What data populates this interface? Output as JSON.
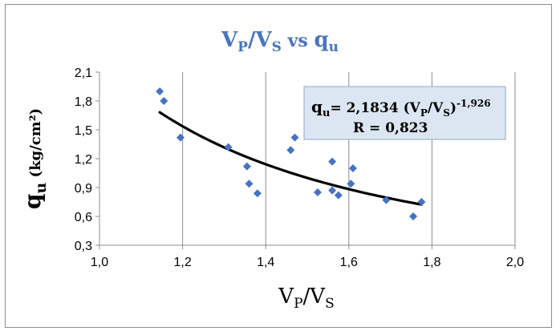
{
  "chart_data": {
    "type": "scatter",
    "title": {
      "main": "V",
      "sub1": "P",
      "mid": "/V",
      "sub2": "S",
      "vs": "vs",
      "q": "q",
      "qsub": "u"
    },
    "xlabel": {
      "main": "V",
      "sub1": "P",
      "mid": "/V",
      "sub2": "S"
    },
    "ylabel": {
      "main": "q",
      "sub": "u",
      "unit": "(kg/cm²)"
    },
    "xlim": [
      1.0,
      2.0
    ],
    "ylim": [
      0.3,
      2.1
    ],
    "x_ticks": [
      "1,0",
      "1,2",
      "1,4",
      "1,6",
      "1,8",
      "2,0"
    ],
    "y_ticks": [
      "0,3",
      "0,6",
      "0,9",
      "1,2",
      "1,5",
      "1,8",
      "2,1"
    ],
    "grid": "vertical",
    "series": [
      {
        "marker": "diamond",
        "color": "#4472c4",
        "points": [
          [
            1.145,
            1.9
          ],
          [
            1.155,
            1.8
          ],
          [
            1.195,
            1.42
          ],
          [
            1.31,
            1.32
          ],
          [
            1.355,
            1.12
          ],
          [
            1.36,
            0.94
          ],
          [
            1.38,
            0.84
          ],
          [
            1.46,
            1.29
          ],
          [
            1.47,
            1.42
          ],
          [
            1.525,
            0.85
          ],
          [
            1.56,
            1.17
          ],
          [
            1.56,
            0.87
          ],
          [
            1.575,
            0.82
          ],
          [
            1.605,
            0.94
          ],
          [
            1.61,
            1.1
          ],
          [
            1.69,
            0.77
          ],
          [
            1.755,
            0.6
          ],
          [
            1.775,
            0.75
          ]
        ]
      }
    ],
    "trendline": {
      "type": "power",
      "coefficient": 2.1834,
      "exponent": -1.926,
      "x_range": [
        1.145,
        1.775
      ],
      "color": "#000000"
    },
    "annotation": {
      "eq_q": "q",
      "eq_qsub": "u",
      "eq_mid": "= 2,1834 (V",
      "eq_sub1": "P",
      "eq_mid2": "/V",
      "eq_sub2": "S",
      "eq_end": ")",
      "eq_exp": "-1,926",
      "r_text": "R = 0,823"
    }
  }
}
